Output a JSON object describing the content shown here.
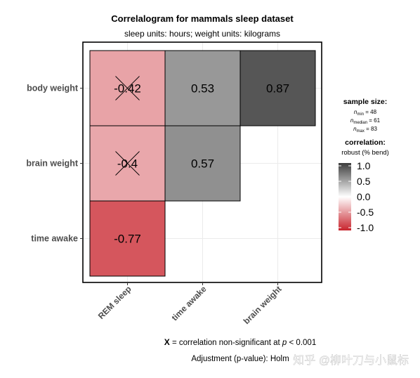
{
  "chart_data": {
    "type": "heatmap",
    "title": "Correlalogram for mammals sleep dataset",
    "subtitle": "sleep units: hours; weight units: kilograms",
    "x_categories": [
      "REM sleep",
      "time awake",
      "brain weight"
    ],
    "y_categories": [
      "body weight",
      "brain weight",
      "time awake"
    ],
    "cells": [
      {
        "row": "body weight",
        "col": "REM sleep",
        "value": -0.42,
        "label": "-0.42",
        "non_significant": true
      },
      {
        "row": "body weight",
        "col": "time awake",
        "value": 0.53,
        "label": "0.53",
        "non_significant": false
      },
      {
        "row": "body weight",
        "col": "brain weight",
        "value": 0.87,
        "label": "0.87",
        "non_significant": false
      },
      {
        "row": "brain weight",
        "col": "REM sleep",
        "value": -0.4,
        "label": "-0.4",
        "non_significant": true
      },
      {
        "row": "brain weight",
        "col": "time awake",
        "value": 0.57,
        "label": "0.57",
        "non_significant": false
      },
      {
        "row": "time awake",
        "col": "REM sleep",
        "value": -0.77,
        "label": "-0.77",
        "non_significant": false
      }
    ],
    "color_range": [
      -1.0,
      1.0
    ],
    "colors": {
      "low": "#c8242d",
      "mid": "#ffffff",
      "high": "#3d3d3d"
    },
    "grid": true,
    "legend_placement": "right",
    "legend": {
      "sample_size_title": "sample size:",
      "n_min": {
        "sym": "n",
        "sub": "min",
        "value": "48"
      },
      "n_median": {
        "sym": "n",
        "sub": "median",
        "value": "61"
      },
      "n_max": {
        "sym": "n",
        "sub": "max",
        "value": "83"
      },
      "correlation_title": "correlation:",
      "correlation_subtitle": "robust (% bend)",
      "ticks": [
        1.0,
        0.5,
        0.0,
        -0.5,
        -1.0
      ],
      "tick_labels": [
        "1.0",
        "0.5",
        "0.0",
        "-0.5",
        "-1.0"
      ]
    },
    "caption": {
      "marker": "X",
      "line1_pre": " = correlation non-significant at ",
      "p_symbol": "p",
      "line1_post": " < 0.001",
      "line2": "Adjustment (p-value): Holm"
    }
  },
  "watermark": "知乎 @柳叶刀与小鼠标"
}
